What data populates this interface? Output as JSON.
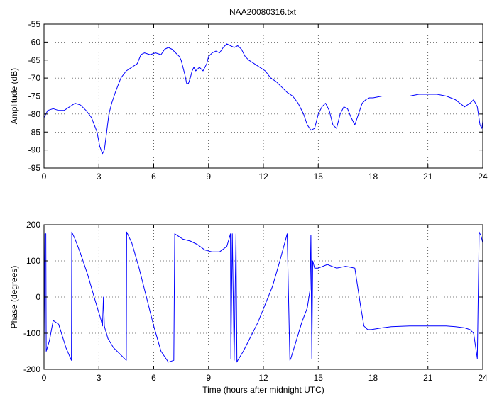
{
  "figure_title": "NAA20080316.txt",
  "colors": {
    "line": "#0000ff",
    "axes": "#000000",
    "grid": "#000000",
    "background": "#ffffff"
  },
  "chart_data": [
    {
      "type": "line",
      "title": "NAA20080316.txt",
      "xlabel": "",
      "ylabel": "Amplitude (dB)",
      "xlim": [
        0,
        24
      ],
      "ylim": [
        -95,
        -55
      ],
      "xticks": [
        0,
        3,
        6,
        9,
        12,
        15,
        18,
        21,
        24
      ],
      "yticks": [
        -95,
        -90,
        -85,
        -80,
        -75,
        -70,
        -65,
        -60,
        -55
      ],
      "grid": true,
      "x": [
        0,
        0.2,
        0.5,
        0.8,
        1.1,
        1.4,
        1.7,
        2.0,
        2.3,
        2.6,
        2.9,
        3.05,
        3.2,
        3.3,
        3.4,
        3.55,
        3.7,
        3.9,
        4.2,
        4.5,
        4.8,
        5.1,
        5.3,
        5.5,
        5.8,
        6.1,
        6.4,
        6.6,
        6.8,
        7.0,
        7.2,
        7.4,
        7.5,
        7.6,
        7.7,
        7.8,
        7.9,
        8.0,
        8.1,
        8.2,
        8.3,
        8.5,
        8.7,
        8.9,
        9.0,
        9.2,
        9.4,
        9.6,
        9.8,
        10.0,
        10.2,
        10.4,
        10.6,
        10.8,
        11.0,
        11.2,
        11.5,
        11.8,
        12.1,
        12.4,
        12.7,
        13.0,
        13.3,
        13.6,
        13.9,
        14.2,
        14.4,
        14.6,
        14.8,
        15.0,
        15.2,
        15.4,
        15.6,
        15.8,
        16.0,
        16.2,
        16.4,
        16.6,
        16.8,
        17.0,
        17.2,
        17.4,
        17.6,
        17.8,
        18.0,
        18.5,
        19.0,
        19.5,
        20.0,
        20.5,
        21.0,
        21.5,
        22.0,
        22.5,
        23.0,
        23.3,
        23.5,
        23.7,
        23.85,
        23.95,
        24.0
      ],
      "y": [
        -81,
        -79,
        -78.5,
        -79,
        -79,
        -78,
        -77,
        -77.5,
        -79,
        -81,
        -85,
        -89,
        -91,
        -90,
        -86,
        -80,
        -77,
        -74,
        -70,
        -68,
        -67,
        -66,
        -63.5,
        -63,
        -63.5,
        -63,
        -63.5,
        -62,
        -61.5,
        -62,
        -63,
        -64,
        -65,
        -67,
        -69,
        -71.5,
        -71.5,
        -70,
        -68,
        -67,
        -68,
        -67,
        -68,
        -66,
        -64,
        -63,
        -62.5,
        -63,
        -61.5,
        -60.5,
        -61,
        -61.5,
        -61,
        -62,
        -64,
        -65,
        -66,
        -67,
        -68,
        -70,
        -71,
        -72.5,
        -74,
        -75,
        -77,
        -80,
        -83,
        -84.5,
        -84,
        -80,
        -78,
        -77,
        -79,
        -83,
        -84,
        -80,
        -78,
        -78.5,
        -81,
        -83,
        -80,
        -77,
        -76,
        -75.5,
        -75.5,
        -75,
        -75,
        -75,
        -75,
        -74.5,
        -74.5,
        -74.5,
        -75,
        -76,
        -78,
        -77,
        -76,
        -78,
        -83,
        -84,
        -82
      ]
    },
    {
      "type": "line",
      "title": "",
      "xlabel": "Time (hours after midnight UTC)",
      "ylabel": "Phase (degrees)",
      "xlim": [
        0,
        24
      ],
      "ylim": [
        -200,
        200
      ],
      "xticks": [
        0,
        3,
        6,
        9,
        12,
        15,
        18,
        21,
        24
      ],
      "yticks": [
        -200,
        -100,
        0,
        100,
        200
      ],
      "grid": true,
      "x": [
        0,
        0.05,
        0.1,
        0.12,
        0.15,
        0.3,
        0.5,
        0.8,
        1.2,
        1.5,
        1.52,
        1.7,
        2.0,
        2.4,
        2.8,
        3.1,
        3.2,
        3.25,
        3.3,
        3.35,
        3.5,
        3.8,
        4.2,
        4.5,
        4.52,
        4.8,
        5.2,
        5.6,
        6.0,
        6.4,
        6.8,
        7.1,
        7.15,
        7.3,
        7.6,
        8.0,
        8.4,
        8.8,
        9.2,
        9.6,
        10.0,
        10.2,
        10.22,
        10.3,
        10.4,
        10.5,
        10.55,
        10.6,
        10.9,
        11.3,
        11.7,
        12.1,
        12.5,
        12.9,
        13.3,
        13.45,
        13.5,
        13.8,
        14.1,
        14.4,
        14.55,
        14.6,
        14.65,
        14.7,
        14.8,
        15.0,
        15.5,
        16.0,
        16.5,
        17.0,
        17.3,
        17.5,
        17.7,
        17.9,
        18.5,
        19.0,
        20.0,
        21.0,
        22.0,
        22.5,
        23.0,
        23.3,
        23.5,
        23.7,
        23.8,
        23.85,
        23.9,
        23.95,
        24.0
      ],
      "y": [
        -140,
        175,
        175,
        -150,
        -145,
        -120,
        -65,
        -75,
        -140,
        -175,
        180,
        160,
        120,
        60,
        -10,
        -60,
        -80,
        0,
        -80,
        -90,
        -115,
        -140,
        -160,
        -175,
        180,
        150,
        80,
        0,
        -80,
        -150,
        -180,
        -175,
        175,
        170,
        160,
        155,
        145,
        130,
        125,
        125,
        140,
        175,
        -170,
        175,
        -175,
        175,
        -180,
        -175,
        -150,
        -110,
        -70,
        -20,
        30,
        100,
        175,
        -175,
        -170,
        -120,
        -70,
        -30,
        20,
        170,
        -170,
        100,
        80,
        80,
        90,
        80,
        85,
        80,
        -20,
        -80,
        -90,
        -90,
        -85,
        -82,
        -80,
        -80,
        -80,
        -82,
        -85,
        -90,
        -100,
        -170,
        180,
        175,
        170,
        160,
        150
      ]
    }
  ]
}
